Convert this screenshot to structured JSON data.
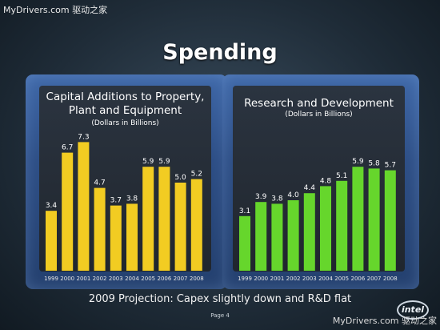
{
  "watermark_top": "MyDrivers.com 驱动之家",
  "watermark_bottom": "MyDrivers.com 驱动之家",
  "slide_title": "Spending",
  "footer_note": "2009 Projection: Capex slightly down and R&D flat",
  "page_label": "Page 4",
  "logo_text": "intel",
  "colors": {
    "capex_bar": "#f2cc22",
    "rd_bar": "#66d62c"
  },
  "chart_data": [
    {
      "type": "bar",
      "title": "Capital Additions to Property, Plant and Equipment",
      "title_line1": "Capital Additions to Property,",
      "title_line2": "Plant and Equipment",
      "subtitle": "(Dollars in Billions)",
      "categories": [
        "1999",
        "2000",
        "2001",
        "2002",
        "2003",
        "2004",
        "2005",
        "2006",
        "2007",
        "2008"
      ],
      "values": [
        3.4,
        6.7,
        7.3,
        4.7,
        3.7,
        3.8,
        5.9,
        5.9,
        5.0,
        5.2
      ],
      "labels": [
        "3.4",
        "6.7",
        "7.3",
        "4.7",
        "3.7",
        "3.8",
        "5.9",
        "5.9",
        "5.0",
        "5.2"
      ],
      "ylim": [
        0,
        8
      ]
    },
    {
      "type": "bar",
      "title": "Research and Development",
      "subtitle": "(Dollars in Billions)",
      "categories": [
        "1999",
        "2000",
        "2001",
        "2002",
        "2003",
        "2004",
        "2005",
        "2006",
        "2007",
        "2008"
      ],
      "values": [
        3.1,
        3.9,
        3.8,
        4.0,
        4.4,
        4.8,
        5.1,
        5.9,
        5.8,
        5.7
      ],
      "labels": [
        "3.1",
        "3.9",
        "3.8",
        "4.0",
        "4.4",
        "4.8",
        "5.1",
        "5.9",
        "5.8",
        "5.7"
      ],
      "ylim": [
        0,
        8
      ]
    }
  ]
}
